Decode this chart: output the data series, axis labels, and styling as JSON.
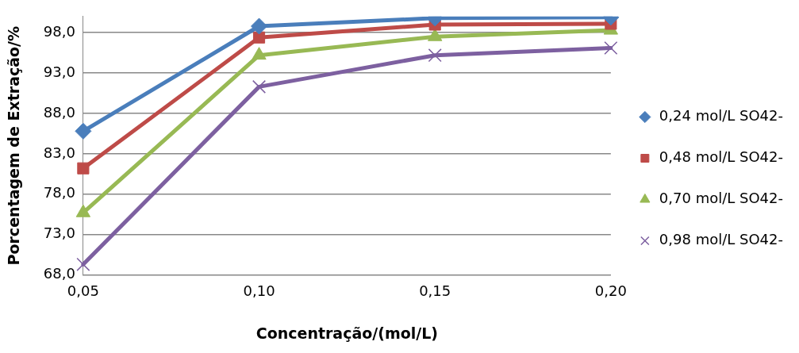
{
  "chart_data": {
    "type": "line",
    "xlabel": "Concentração/(mol/L)",
    "ylabel": "Porcentagem de Extração/%",
    "categories": [
      "0,05",
      "0,10",
      "0,15",
      "0,20"
    ],
    "series": [
      {
        "name": "0,24 mol/L SO42-",
        "color": "#4a7ebb",
        "marker": "diamond",
        "values": [
          85.8,
          98.8,
          99.8,
          99.9
        ]
      },
      {
        "name": "0,48 mol/L SO42-",
        "color": "#be4b48",
        "marker": "square",
        "values": [
          81.2,
          97.4,
          99.0,
          99.1
        ]
      },
      {
        "name": "0,70 mol/L SO42-",
        "color": "#98b954",
        "marker": "triangle",
        "values": [
          75.7,
          95.2,
          97.5,
          98.3
        ]
      },
      {
        "name": "0,98 mol/L SO42-",
        "color": "#7d60a0",
        "marker": "cross",
        "values": [
          69.3,
          91.3,
          95.2,
          96.1
        ]
      }
    ],
    "ylim": [
      68,
      100
    ],
    "yticks": [
      {
        "value": 68,
        "label": "68,0"
      },
      {
        "value": 73,
        "label": "73,0"
      },
      {
        "value": 78,
        "label": "78,0"
      },
      {
        "value": 83,
        "label": "83,0"
      },
      {
        "value": 88,
        "label": "88,0"
      },
      {
        "value": 93,
        "label": "93,0"
      },
      {
        "value": 98,
        "label": "98,0"
      }
    ],
    "grid": "y",
    "legend": "right",
    "line_style": "solid"
  }
}
